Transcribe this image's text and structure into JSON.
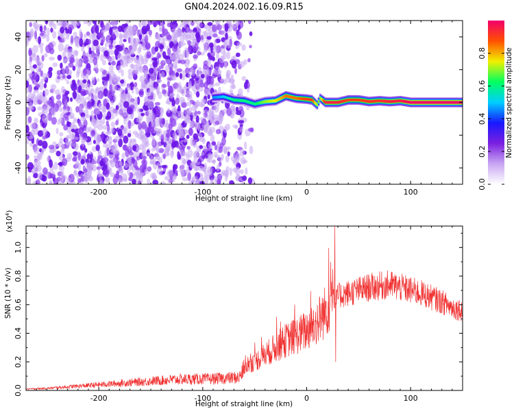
{
  "title": "GN04.2024.002.16.09.R15",
  "chart_data": [
    {
      "type": "heatmap",
      "xlabel": "Height of straight line (km)",
      "ylabel": "Frequency (Hz)",
      "xlim": [
        -270,
        150
      ],
      "ylim": [
        -50,
        50
      ],
      "x_ticks": [
        "-200",
        "-100",
        "0",
        "100"
      ],
      "x_tick_values": [
        -200,
        -100,
        0,
        100
      ],
      "y_ticks": [
        "-40",
        "-20",
        "0",
        "20",
        "40"
      ],
      "y_tick_values": [
        -40,
        -20,
        0,
        20,
        40
      ],
      "colorbar": {
        "label": "Normalized spectral amplitude",
        "range": [
          0,
          1
        ],
        "ticks": [
          "0.0",
          "0.2",
          "0.4",
          "0.6",
          "0.8"
        ],
        "tick_values": [
          0.0,
          0.2,
          0.4,
          0.6,
          0.8
        ],
        "colors": [
          "#ffffff",
          "#c8a6f2",
          "#7b1fe0",
          "#1818ff",
          "#00cfff",
          "#00ff60",
          "#f0f000",
          "#ff5000",
          "#f2006c"
        ]
      },
      "noise_region": {
        "x_from": -270,
        "x_to": -65,
        "amplitude": 0.15
      },
      "signal_track": [
        {
          "x": -90,
          "y": 3.0,
          "a": 0.45
        },
        {
          "x": -80,
          "y": 3.5,
          "a": 0.5
        },
        {
          "x": -70,
          "y": 1.5,
          "a": 0.6
        },
        {
          "x": -60,
          "y": 1.0,
          "a": 0.6
        },
        {
          "x": -50,
          "y": -1.0,
          "a": 0.6
        },
        {
          "x": -40,
          "y": 0.5,
          "a": 0.7
        },
        {
          "x": -30,
          "y": 1.0,
          "a": 0.75
        },
        {
          "x": -25,
          "y": 2.5,
          "a": 0.8
        },
        {
          "x": -20,
          "y": 4.0,
          "a": 0.85
        },
        {
          "x": -10,
          "y": 2.5,
          "a": 0.85
        },
        {
          "x": 0,
          "y": 2.0,
          "a": 0.9
        },
        {
          "x": 5,
          "y": 1.5,
          "a": 0.9
        },
        {
          "x": 10,
          "y": -1.5,
          "a": 0.7
        },
        {
          "x": 13,
          "y": 2.5,
          "a": 0.7
        },
        {
          "x": 18,
          "y": 0.0,
          "a": 0.95
        },
        {
          "x": 30,
          "y": 0.0,
          "a": 0.95
        },
        {
          "x": 40,
          "y": 1.5,
          "a": 0.9
        },
        {
          "x": 50,
          "y": 1.5,
          "a": 0.9
        },
        {
          "x": 60,
          "y": 0.5,
          "a": 0.92
        },
        {
          "x": 70,
          "y": 1.0,
          "a": 0.92
        },
        {
          "x": 80,
          "y": 0.5,
          "a": 0.95
        },
        {
          "x": 90,
          "y": 1.0,
          "a": 0.95
        },
        {
          "x": 100,
          "y": 0.0,
          "a": 1.0
        },
        {
          "x": 120,
          "y": 0.0,
          "a": 1.0
        },
        {
          "x": 150,
          "y": 0.0,
          "a": 1.0
        }
      ]
    },
    {
      "type": "line",
      "xlabel": "Height of straight line (km)",
      "ylabel": "SNR (10 * v/v)",
      "y_multiplier": "(x10",
      "y_multiplier_exp": "4",
      "y_multiplier_close": ")",
      "xlim": [
        -270,
        150
      ],
      "ylim": [
        0,
        1.15
      ],
      "x_ticks": [
        "-200",
        "-100",
        "0",
        "100"
      ],
      "x_tick_values": [
        -200,
        -100,
        0,
        100
      ],
      "y_ticks": [
        "0.0",
        "0.2",
        "0.4",
        "0.6",
        "0.8",
        "1.0"
      ],
      "y_tick_values": [
        0.0,
        0.2,
        0.4,
        0.6,
        0.8,
        1.0
      ],
      "line_color": "#f03030",
      "series": [
        {
          "x": [
            -270,
            -250,
            -230,
            -210,
            -190,
            -170,
            -150,
            -130,
            -110,
            -95,
            -80,
            -65,
            -58,
            -50,
            -40,
            -30,
            -20,
            -10,
            0,
            10,
            18,
            22,
            26,
            28,
            30,
            40,
            50,
            60,
            70,
            80,
            90,
            100,
            110,
            120,
            130,
            140,
            150
          ],
          "y": [
            0.01,
            0.015,
            0.025,
            0.035,
            0.045,
            0.055,
            0.065,
            0.075,
            0.08,
            0.08,
            0.085,
            0.09,
            0.18,
            0.2,
            0.25,
            0.3,
            0.35,
            0.38,
            0.42,
            0.48,
            0.55,
            0.62,
            0.68,
            0.62,
            0.66,
            0.68,
            0.7,
            0.72,
            0.73,
            0.74,
            0.72,
            0.7,
            0.68,
            0.65,
            0.62,
            0.58,
            0.56
          ]
        }
      ],
      "spikes": [
        {
          "x": 25,
          "y": 0.85
        },
        {
          "x": 27,
          "y": 1.15
        },
        {
          "x": 28,
          "y": 0.2
        }
      ]
    }
  ]
}
